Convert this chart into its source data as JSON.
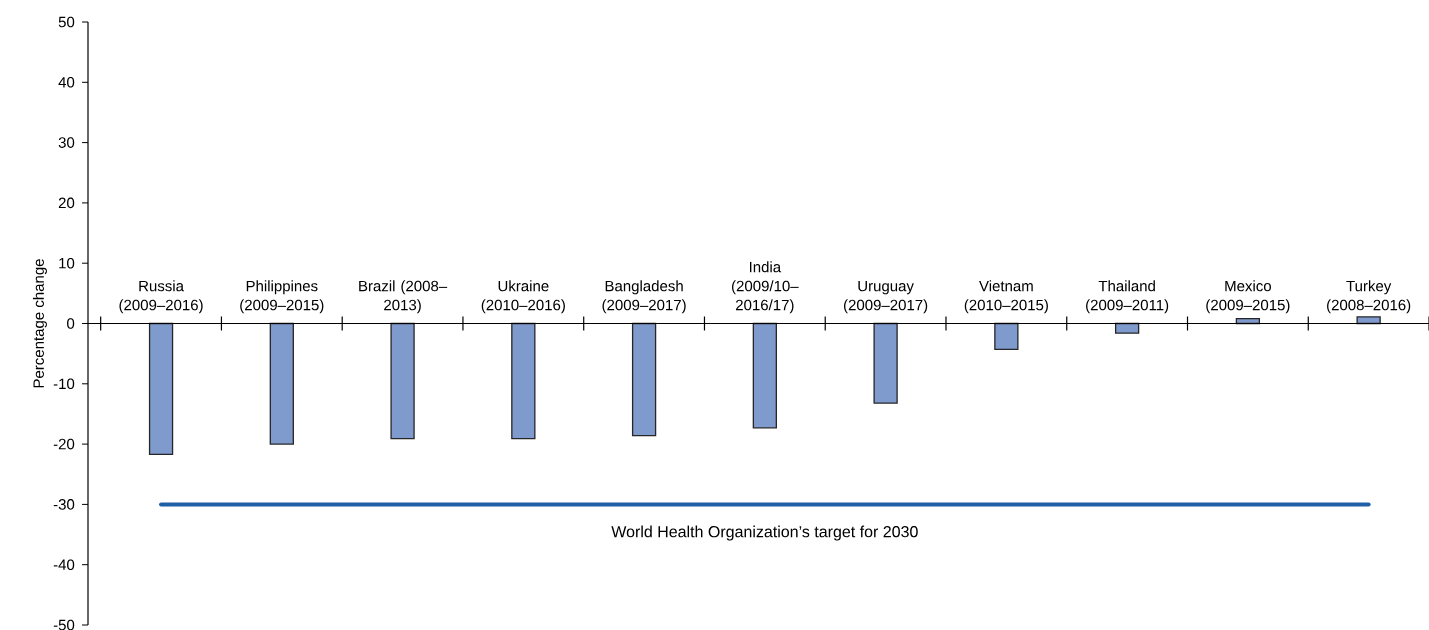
{
  "chart_data": {
    "type": "bar",
    "categories": [
      "Russia (2009–2016)",
      "Philippines (2009–2015)",
      "Brazil (2008–2013)",
      "Ukraine (2010–2016)",
      "Bangladesh (2009–2017)",
      "India (2009/10–2016/17)",
      "Uruguay (2009–2017)",
      "Vietnam (2010–2015)",
      "Thailand (2009–2011)",
      "Mexico (2009–2015)",
      "Turkey (2008–2016)"
    ],
    "values": [
      -21.7,
      -20.0,
      -19.1,
      -19.1,
      -18.6,
      -17.3,
      -13.2,
      -4.3,
      -1.6,
      0.8,
      1.1
    ],
    "color": "#7f9acd",
    "ylabel": "Percentage change",
    "ylim": [
      -50,
      50
    ],
    "yticks": [
      -50,
      -40,
      -30,
      -20,
      -10,
      0,
      10,
      20,
      30,
      40,
      50
    ],
    "ref_lines": [
      {
        "axis": "y",
        "value": -30,
        "label": "World Health Organization’s target for 2030",
        "color": "#1f5fa6"
      }
    ]
  }
}
